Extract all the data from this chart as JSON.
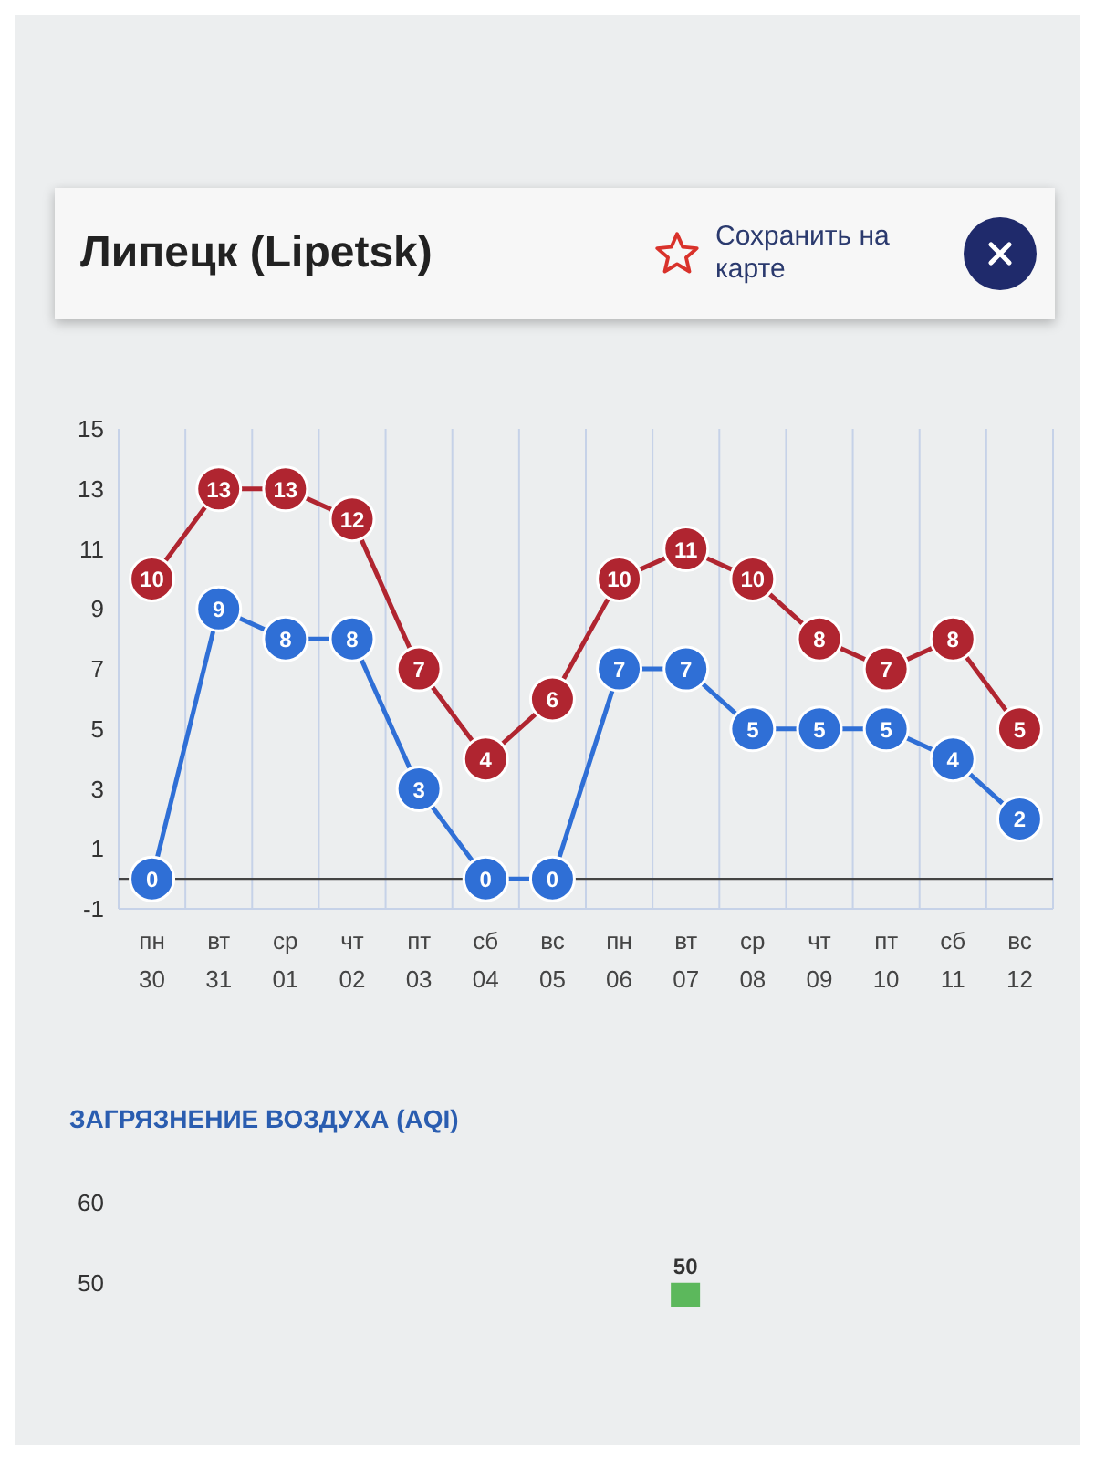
{
  "chart_data": [
    {
      "type": "line",
      "title": "Липецк (Lipetsk)",
      "annotations": [
        "Сохранить на карте"
      ],
      "categories": [
        "пн\n30",
        "вт\n31",
        "ср\n01",
        "чт\n02",
        "пт\n03",
        "сб\n04",
        "вс\n05",
        "пн\n06",
        "вт\n07",
        "ср\n08",
        "чт\n09",
        "пт\n10",
        "сб\n11",
        "вс\n12"
      ],
      "series": [
        {
          "color": "#b02530",
          "values": [
            10,
            13,
            13,
            12,
            7,
            4,
            6,
            10,
            11,
            10,
            8,
            7,
            8,
            5
          ]
        },
        {
          "color": "#2f6fd6",
          "values": [
            0,
            9,
            8,
            8,
            3,
            0,
            0,
            7,
            7,
            5,
            5,
            5,
            4,
            2
          ]
        }
      ],
      "ylim": [
        -1,
        15
      ],
      "yticks": [
        -1,
        1,
        3,
        5,
        7,
        9,
        11,
        13,
        15
      ],
      "grid": "x",
      "ref_lines": [
        {
          "axis": "y",
          "value": 0,
          "color": "#444444"
        }
      ],
      "marker": "circle",
      "line_style": "solid",
      "data_labels": true
    },
    {
      "type": "bar",
      "title": "ЗАГРЯЗНЕНИЕ ВОЗДУХА (AQI)",
      "categories": [
        null,
        null,
        null,
        null,
        null,
        null,
        null,
        null,
        null,
        null,
        null,
        null,
        null,
        null
      ],
      "values": [
        null,
        null,
        null,
        null,
        null,
        null,
        null,
        null,
        50,
        null,
        null,
        null,
        null,
        null
      ],
      "color": "#5cb85c",
      "ylim": [
        47,
        60
      ],
      "yticks": [
        50,
        60
      ],
      "data_labels": true
    }
  ]
}
